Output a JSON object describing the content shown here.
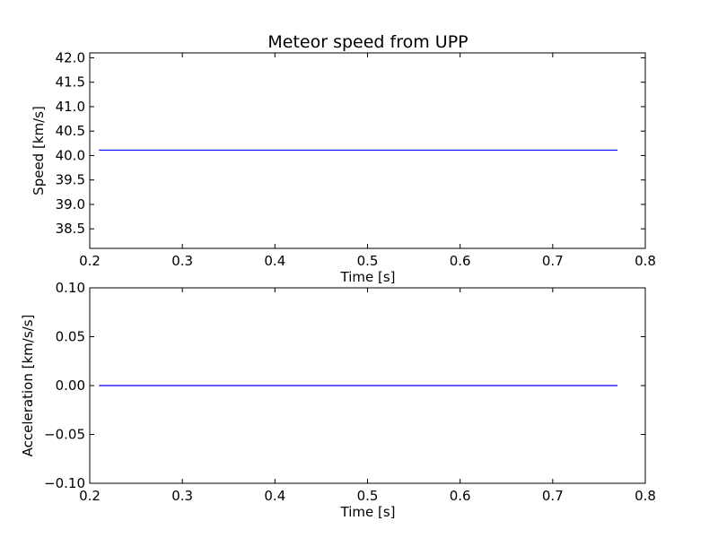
{
  "chart_data": [
    {
      "type": "line",
      "title": "Meteor speed from  UPP",
      "xlabel": "Time [s]",
      "ylabel": "Speed [km/s]",
      "xlim": [
        0.2,
        0.8
      ],
      "ylim": [
        38.1,
        42.1
      ],
      "xticks": [
        0.2,
        0.3,
        0.4,
        0.5,
        0.6,
        0.7,
        0.8
      ],
      "xtick_labels": [
        "0.2",
        "0.3",
        "0.4",
        "0.5",
        "0.6",
        "0.7",
        "0.8"
      ],
      "yticks": [
        38.5,
        39.0,
        39.5,
        40.0,
        40.5,
        41.0,
        41.5,
        42.0
      ],
      "ytick_labels": [
        "38.5",
        "39.0",
        "39.5",
        "40.0",
        "40.5",
        "41.0",
        "41.5",
        "42.0"
      ],
      "grid": false,
      "series": [
        {
          "color": "#0000ff",
          "x": [
            0.21,
            0.77
          ],
          "y": [
            40.11,
            40.11
          ]
        }
      ]
    },
    {
      "type": "line",
      "title": "",
      "xlabel": "Time [s]",
      "ylabel": "Acceleration [km/s/s]",
      "xlim": [
        0.2,
        0.8
      ],
      "ylim": [
        -0.1,
        0.1
      ],
      "xticks": [
        0.2,
        0.3,
        0.4,
        0.5,
        0.6,
        0.7,
        0.8
      ],
      "xtick_labels": [
        "0.2",
        "0.3",
        "0.4",
        "0.5",
        "0.6",
        "0.7",
        "0.8"
      ],
      "yticks": [
        -0.1,
        -0.05,
        0.0,
        0.05,
        0.1
      ],
      "ytick_labels": [
        "−0.10",
        "−0.05",
        "0.00",
        "0.05",
        "0.10"
      ],
      "grid": false,
      "series": [
        {
          "color": "#0000ff",
          "x": [
            0.21,
            0.77
          ],
          "y": [
            0.0,
            0.0
          ]
        }
      ]
    }
  ]
}
